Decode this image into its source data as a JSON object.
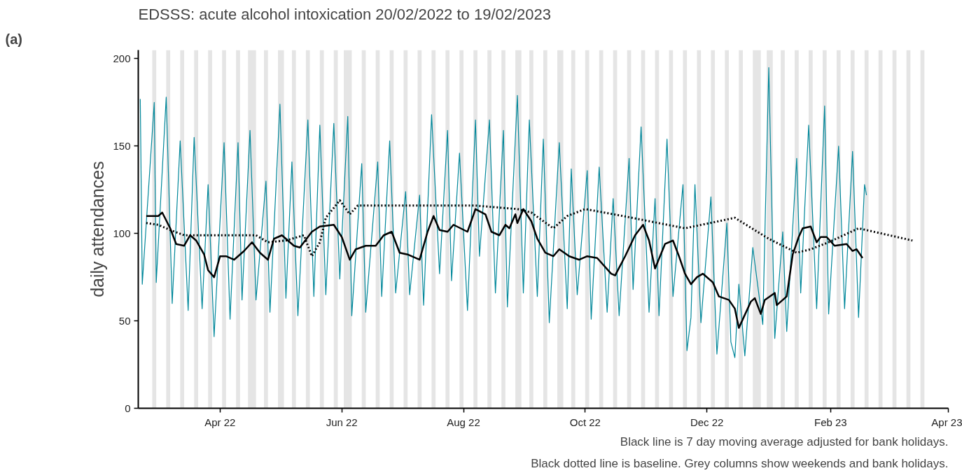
{
  "chart_data": {
    "type": "line",
    "title": "EDSSS: acute alcohol intoxication 20/02/2022 to 19/02/2023",
    "ylabel": "daily attendances",
    "annotations": [
      "(a)",
      "Black line is 7 day moving average adjusted for bank holidays.",
      "Black dotted line is baseline. Grey columns show weekends and bank holidays."
    ],
    "xlim": [
      "2022-02-19",
      "2023-04-01"
    ],
    "xticks": [
      {
        "value": "2022-04-01",
        "label": "Apr 22"
      },
      {
        "value": "2022-06-01",
        "label": "Jun 22"
      },
      {
        "value": "2022-08-01",
        "label": "Aug 22"
      },
      {
        "value": "2022-10-01",
        "label": "Oct 22"
      },
      {
        "value": "2022-12-01",
        "label": "Dec 22"
      },
      {
        "value": "2023-02-01",
        "label": "Feb 23"
      },
      {
        "value": "2023-04-01",
        "label": "Apr 23"
      }
    ],
    "ylim": [
      0,
      205
    ],
    "yticks": [
      0,
      50,
      100,
      150,
      200
    ],
    "grid": false,
    "series": [
      {
        "color": "#00879a",
        "line_style": "solid",
        "x": [
          "2022-02-20",
          "2022-02-21",
          "2022-02-27",
          "2022-02-28",
          "2022-03-05",
          "2022-03-08",
          "2022-03-12",
          "2022-03-16",
          "2022-03-19",
          "2022-03-23",
          "2022-03-26",
          "2022-03-29",
          "2022-04-03",
          "2022-04-06",
          "2022-04-10",
          "2022-04-12",
          "2022-04-16",
          "2022-04-19",
          "2022-04-24",
          "2022-04-26",
          "2022-05-01",
          "2022-05-04",
          "2022-05-07",
          "2022-05-10",
          "2022-05-15",
          "2022-05-18",
          "2022-05-21",
          "2022-05-24",
          "2022-05-28",
          "2022-05-31",
          "2022-06-04",
          "2022-06-06",
          "2022-06-11",
          "2022-06-13",
          "2022-06-19",
          "2022-06-21",
          "2022-06-25",
          "2022-06-28",
          "2022-07-03",
          "2022-07-05",
          "2022-07-10",
          "2022-07-12",
          "2022-07-16",
          "2022-07-20",
          "2022-07-24",
          "2022-07-26",
          "2022-07-30",
          "2022-08-03",
          "2022-08-07",
          "2022-08-09",
          "2022-08-14",
          "2022-08-17",
          "2022-08-21",
          "2022-08-23",
          "2022-08-28",
          "2022-08-31",
          "2022-09-03",
          "2022-09-07",
          "2022-09-10",
          "2022-09-13",
          "2022-09-18",
          "2022-09-22",
          "2022-09-24",
          "2022-09-27",
          "2022-10-02",
          "2022-10-04",
          "2022-10-08",
          "2022-10-12",
          "2022-10-15",
          "2022-10-18",
          "2022-10-23",
          "2022-10-25",
          "2022-10-29",
          "2022-11-02",
          "2022-11-05",
          "2022-11-07",
          "2022-11-11",
          "2022-11-14",
          "2022-11-19",
          "2022-11-21",
          "2022-11-23",
          "2022-11-25",
          "2022-11-28",
          "2022-12-03",
          "2022-12-06",
          "2022-12-11",
          "2022-12-13",
          "2022-12-15",
          "2022-12-17",
          "2022-12-20",
          "2022-12-24",
          "2022-12-29",
          "2023-01-01",
          "2023-01-04",
          "2023-01-08",
          "2023-01-10",
          "2023-01-15",
          "2023-01-17",
          "2023-01-21",
          "2023-01-25",
          "2023-01-29",
          "2023-01-31",
          "2023-02-05",
          "2023-02-08",
          "2023-02-12",
          "2023-02-15",
          "2023-02-18",
          "2023-02-19"
        ],
        "values": [
          177,
          71,
          175,
          72,
          178,
          60,
          153,
          56,
          155,
          57,
          128,
          41,
          152,
          51,
          152,
          62,
          159,
          62,
          130,
          55,
          174,
          63,
          141,
          53,
          165,
          64,
          162,
          65,
          163,
          74,
          167,
          53,
          140,
          55,
          141,
          64,
          153,
          66,
          124,
          65,
          122,
          59,
          168,
          77,
          159,
          73,
          146,
          56,
          165,
          87,
          165,
          66,
          159,
          58,
          179,
          66,
          165,
          64,
          154,
          49,
          152,
          57,
          137,
          65,
          136,
          51,
          138,
          55,
          120,
          53,
          143,
          68,
          161,
          55,
          120,
          53,
          154,
          64,
          128,
          33,
          52,
          128,
          49,
          121,
          31,
          106,
          38,
          29,
          71,
          30,
          92,
          48,
          195,
          40,
          101,
          44,
          143,
          66,
          162,
          57,
          173,
          54,
          150,
          57,
          147,
          52,
          128,
          122
        ]
      },
      {
        "color": "#000000",
        "line_style": "solid",
        "x": [
          "2022-02-23",
          "2022-03-01",
          "2022-03-03",
          "2022-03-07",
          "2022-03-10",
          "2022-03-14",
          "2022-03-17",
          "2022-03-20",
          "2022-03-24",
          "2022-03-26",
          "2022-03-29",
          "2022-04-01",
          "2022-04-04",
          "2022-04-08",
          "2022-04-13",
          "2022-04-17",
          "2022-04-21",
          "2022-04-25",
          "2022-04-28",
          "2022-05-02",
          "2022-05-08",
          "2022-05-11",
          "2022-05-17",
          "2022-05-21",
          "2022-05-28",
          "2022-06-01",
          "2022-06-05",
          "2022-06-08",
          "2022-06-13",
          "2022-06-18",
          "2022-06-22",
          "2022-06-26",
          "2022-06-30",
          "2022-07-04",
          "2022-07-10",
          "2022-07-14",
          "2022-07-17",
          "2022-07-20",
          "2022-07-24",
          "2022-07-27",
          "2022-08-03",
          "2022-08-07",
          "2022-08-12",
          "2022-08-15",
          "2022-08-19",
          "2022-08-22",
          "2022-08-24",
          "2022-08-27",
          "2022-08-28",
          "2022-08-31",
          "2022-09-04",
          "2022-09-07",
          "2022-09-11",
          "2022-09-15",
          "2022-09-18",
          "2022-09-23",
          "2022-09-28",
          "2022-10-02",
          "2022-10-07",
          "2022-10-14",
          "2022-10-16",
          "2022-10-21",
          "2022-10-26",
          "2022-10-30",
          "2022-11-02",
          "2022-11-05",
          "2022-11-10",
          "2022-11-14",
          "2022-11-17",
          "2022-11-20",
          "2022-11-23",
          "2022-11-26",
          "2022-11-29",
          "2022-12-04",
          "2022-12-07",
          "2022-12-12",
          "2022-12-15",
          "2022-12-17",
          "2022-12-23",
          "2022-12-25",
          "2022-12-28",
          "2022-12-30",
          "2023-01-04",
          "2023-01-05",
          "2023-01-10",
          "2023-01-13",
          "2023-01-16",
          "2023-01-18",
          "2023-01-22",
          "2023-01-25",
          "2023-01-27",
          "2023-01-30",
          "2023-02-03",
          "2023-02-09",
          "2023-02-12",
          "2023-02-14",
          "2023-02-17"
        ],
        "values": [
          110,
          110,
          112,
          103,
          94,
          93,
          99,
          96,
          88,
          79,
          75,
          87,
          87,
          85,
          90,
          95,
          89,
          85,
          97,
          99,
          93,
          92,
          101,
          104,
          105,
          98,
          85,
          91,
          93,
          93,
          99,
          101,
          89,
          88,
          85,
          101,
          110,
          102,
          101,
          105,
          101,
          114,
          111,
          101,
          99,
          105,
          103,
          111,
          106,
          114,
          107,
          97,
          89,
          87,
          91,
          87,
          85,
          87,
          86,
          77,
          76,
          87,
          99,
          105,
          96,
          80,
          94,
          96,
          87,
          77,
          71,
          75,
          77,
          72,
          64,
          62,
          57,
          46,
          61,
          63,
          54,
          62,
          66,
          59,
          64,
          88,
          98,
          103,
          104,
          95,
          98,
          98,
          93,
          94,
          90,
          91,
          86
        ]
      },
      {
        "color": "#000000",
        "line_style": "dotted",
        "x": [
          "2022-02-23",
          "2022-03-01",
          "2022-03-07",
          "2022-03-14",
          "2022-04-01",
          "2022-04-19",
          "2022-04-25",
          "2022-05-04",
          "2022-05-13",
          "2022-05-17",
          "2022-05-21",
          "2022-05-24",
          "2022-05-31",
          "2022-06-05",
          "2022-06-09",
          "2022-07-04",
          "2022-08-07",
          "2022-08-28",
          "2022-09-04",
          "2022-09-15",
          "2022-09-22",
          "2022-10-01",
          "2022-10-20",
          "2022-11-20",
          "2022-12-15",
          "2023-01-01",
          "2023-01-15",
          "2023-01-22",
          "2023-01-31",
          "2023-02-15",
          "2023-03-14"
        ],
        "values": [
          106,
          105,
          102,
          99,
          99,
          99,
          95,
          96,
          99,
          87,
          95,
          109,
          119,
          111,
          116,
          116,
          116,
          114,
          112,
          103,
          110,
          114,
          110,
          103,
          109,
          97,
          89,
          91,
          95,
          103,
          96
        ]
      }
    ],
    "bands": [
      {
        "axis": "x",
        "from": "2022-02-26",
        "to": "2022-02-28",
        "color": "#e5e5e5"
      },
      {
        "axis": "x",
        "from": "2022-03-05",
        "to": "2022-03-07",
        "color": "#e5e5e5"
      },
      {
        "axis": "x",
        "from": "2022-03-12",
        "to": "2022-03-14",
        "color": "#e5e5e5"
      },
      {
        "axis": "x",
        "from": "2022-03-19",
        "to": "2022-03-21",
        "color": "#e5e5e5"
      },
      {
        "axis": "x",
        "from": "2022-03-26",
        "to": "2022-03-28",
        "color": "#e5e5e5"
      },
      {
        "axis": "x",
        "from": "2022-04-02",
        "to": "2022-04-04",
        "color": "#e5e5e5"
      },
      {
        "axis": "x",
        "from": "2022-04-09",
        "to": "2022-04-11",
        "color": "#e5e5e5"
      },
      {
        "axis": "x",
        "from": "2022-04-15",
        "to": "2022-04-19",
        "color": "#e5e5e5"
      },
      {
        "axis": "x",
        "from": "2022-04-23",
        "to": "2022-04-25",
        "color": "#e5e5e5"
      },
      {
        "axis": "x",
        "from": "2022-04-30",
        "to": "2022-05-03",
        "color": "#e5e5e5"
      },
      {
        "axis": "x",
        "from": "2022-05-07",
        "to": "2022-05-09",
        "color": "#e5e5e5"
      },
      {
        "axis": "x",
        "from": "2022-05-14",
        "to": "2022-05-16",
        "color": "#e5e5e5"
      },
      {
        "axis": "x",
        "from": "2022-05-21",
        "to": "2022-05-23",
        "color": "#e5e5e5"
      },
      {
        "axis": "x",
        "from": "2022-05-28",
        "to": "2022-05-30",
        "color": "#e5e5e5"
      },
      {
        "axis": "x",
        "from": "2022-06-02",
        "to": "2022-06-06",
        "color": "#e5e5e5"
      },
      {
        "axis": "x",
        "from": "2022-06-11",
        "to": "2022-06-13",
        "color": "#e5e5e5"
      },
      {
        "axis": "x",
        "from": "2022-06-18",
        "to": "2022-06-20",
        "color": "#e5e5e5"
      },
      {
        "axis": "x",
        "from": "2022-06-25",
        "to": "2022-06-27",
        "color": "#e5e5e5"
      },
      {
        "axis": "x",
        "from": "2022-07-02",
        "to": "2022-07-04",
        "color": "#e5e5e5"
      },
      {
        "axis": "x",
        "from": "2022-07-09",
        "to": "2022-07-11",
        "color": "#e5e5e5"
      },
      {
        "axis": "x",
        "from": "2022-07-16",
        "to": "2022-07-18",
        "color": "#e5e5e5"
      },
      {
        "axis": "x",
        "from": "2022-07-23",
        "to": "2022-07-25",
        "color": "#e5e5e5"
      },
      {
        "axis": "x",
        "from": "2022-07-30",
        "to": "2022-08-01",
        "color": "#e5e5e5"
      },
      {
        "axis": "x",
        "from": "2022-08-06",
        "to": "2022-08-08",
        "color": "#e5e5e5"
      },
      {
        "axis": "x",
        "from": "2022-08-13",
        "to": "2022-08-15",
        "color": "#e5e5e5"
      },
      {
        "axis": "x",
        "from": "2022-08-20",
        "to": "2022-08-22",
        "color": "#e5e5e5"
      },
      {
        "axis": "x",
        "from": "2022-08-27",
        "to": "2022-08-30",
        "color": "#e5e5e5"
      },
      {
        "axis": "x",
        "from": "2022-09-03",
        "to": "2022-09-05",
        "color": "#e5e5e5"
      },
      {
        "axis": "x",
        "from": "2022-09-10",
        "to": "2022-09-12",
        "color": "#e5e5e5"
      },
      {
        "axis": "x",
        "from": "2022-09-17",
        "to": "2022-09-20",
        "color": "#e5e5e5"
      },
      {
        "axis": "x",
        "from": "2022-09-24",
        "to": "2022-09-26",
        "color": "#e5e5e5"
      },
      {
        "axis": "x",
        "from": "2022-10-01",
        "to": "2022-10-03",
        "color": "#e5e5e5"
      },
      {
        "axis": "x",
        "from": "2022-10-08",
        "to": "2022-10-10",
        "color": "#e5e5e5"
      },
      {
        "axis": "x",
        "from": "2022-10-15",
        "to": "2022-10-17",
        "color": "#e5e5e5"
      },
      {
        "axis": "x",
        "from": "2022-10-22",
        "to": "2022-10-24",
        "color": "#e5e5e5"
      },
      {
        "axis": "x",
        "from": "2022-10-29",
        "to": "2022-10-31",
        "color": "#e5e5e5"
      },
      {
        "axis": "x",
        "from": "2022-11-05",
        "to": "2022-11-07",
        "color": "#e5e5e5"
      },
      {
        "axis": "x",
        "from": "2022-11-12",
        "to": "2022-11-14",
        "color": "#e5e5e5"
      },
      {
        "axis": "x",
        "from": "2022-11-19",
        "to": "2022-11-21",
        "color": "#e5e5e5"
      },
      {
        "axis": "x",
        "from": "2022-11-26",
        "to": "2022-11-28",
        "color": "#e5e5e5"
      },
      {
        "axis": "x",
        "from": "2022-12-03",
        "to": "2022-12-05",
        "color": "#e5e5e5"
      },
      {
        "axis": "x",
        "from": "2022-12-10",
        "to": "2022-12-12",
        "color": "#e5e5e5"
      },
      {
        "axis": "x",
        "from": "2022-12-17",
        "to": "2022-12-19",
        "color": "#e5e5e5"
      },
      {
        "axis": "x",
        "from": "2022-12-24",
        "to": "2022-12-28",
        "color": "#e5e5e5"
      },
      {
        "axis": "x",
        "from": "2022-12-31",
        "to": "2023-01-03",
        "color": "#e5e5e5"
      },
      {
        "axis": "x",
        "from": "2023-01-07",
        "to": "2023-01-09",
        "color": "#e5e5e5"
      },
      {
        "axis": "x",
        "from": "2023-01-14",
        "to": "2023-01-16",
        "color": "#e5e5e5"
      },
      {
        "axis": "x",
        "from": "2023-01-21",
        "to": "2023-01-23",
        "color": "#e5e5e5"
      },
      {
        "axis": "x",
        "from": "2023-01-28",
        "to": "2023-01-30",
        "color": "#e5e5e5"
      },
      {
        "axis": "x",
        "from": "2023-02-04",
        "to": "2023-02-06",
        "color": "#e5e5e5"
      },
      {
        "axis": "x",
        "from": "2023-02-11",
        "to": "2023-02-13",
        "color": "#e5e5e5"
      },
      {
        "axis": "x",
        "from": "2023-02-18",
        "to": "2023-02-20",
        "color": "#e5e5e5"
      },
      {
        "axis": "x",
        "from": "2023-02-25",
        "to": "2023-02-27",
        "color": "#e5e5e5"
      },
      {
        "axis": "x",
        "from": "2023-03-04",
        "to": "2023-03-06",
        "color": "#e5e5e5"
      },
      {
        "axis": "x",
        "from": "2023-03-11",
        "to": "2023-03-13",
        "color": "#e5e5e5"
      },
      {
        "axis": "x",
        "from": "2023-03-18",
        "to": "2023-03-20",
        "color": "#e5e5e5"
      }
    ]
  }
}
